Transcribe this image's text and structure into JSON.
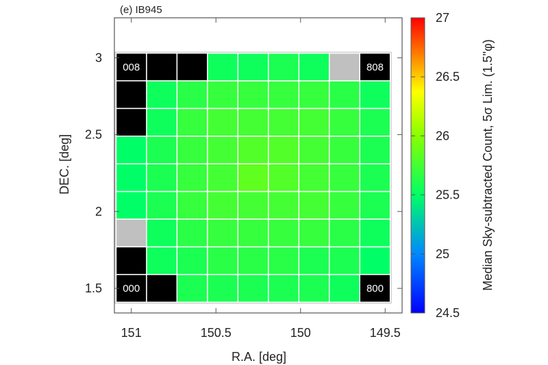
{
  "chart_data": {
    "type": "heatmap",
    "title": "(e) IB945",
    "xlabel": "R.A. [deg]",
    "ylabel": "DEC. [deg]",
    "colorbar_label": "Median Sky-subtracted Count, 5σ Lim. (1.5\"φ)",
    "xlim": [
      151.1,
      149.4
    ],
    "ylim": [
      1.34,
      3.26
    ],
    "x_ticks": [
      {
        "value": 151,
        "label": "151"
      },
      {
        "value": 150.5,
        "label": "150.5"
      },
      {
        "value": 150,
        "label": "150"
      },
      {
        "value": 149.5,
        "label": "149.5"
      }
    ],
    "y_ticks": [
      {
        "value": 1.5,
        "label": "1.5"
      },
      {
        "value": 2,
        "label": "2"
      },
      {
        "value": 2.5,
        "label": "2.5"
      },
      {
        "value": 3,
        "label": "3"
      }
    ],
    "colorbar": {
      "min": 24.5,
      "max": 27,
      "ticks": [
        {
          "value": 24.5,
          "label": "24.5"
        },
        {
          "value": 25,
          "label": "25"
        },
        {
          "value": 25.5,
          "label": "25.5"
        },
        {
          "value": 26,
          "label": "26"
        },
        {
          "value": 26.5,
          "label": "26.5"
        },
        {
          "value": 27,
          "label": "27"
        }
      ]
    },
    "grid": {
      "ra_start": 151.0,
      "ra_step": -0.18,
      "dec_start": 1.5,
      "dec_step": 0.18,
      "cols": 9,
      "rows": 9,
      "note_row_order": "rows listed from top (DEC 3.0) to bottom (DEC 1.5)",
      "values": [
        [
          "nodata-black",
          "nodata-black",
          "nodata-black",
          25.55,
          25.55,
          25.6,
          25.55,
          "nodata-gray",
          "nodata-black"
        ],
        [
          "nodata-black",
          25.55,
          25.65,
          25.7,
          25.7,
          25.7,
          25.7,
          25.65,
          25.55
        ],
        [
          "nodata-black",
          25.55,
          25.7,
          25.75,
          25.75,
          25.75,
          25.75,
          25.7,
          25.6
        ],
        [
          25.5,
          25.6,
          25.7,
          25.75,
          25.8,
          25.8,
          25.75,
          25.7,
          25.6
        ],
        [
          25.5,
          25.6,
          25.7,
          25.75,
          25.85,
          25.8,
          25.75,
          25.7,
          25.6
        ],
        [
          25.5,
          25.6,
          25.7,
          25.75,
          25.75,
          25.75,
          25.75,
          25.7,
          25.6
        ],
        [
          "nodata-gray",
          25.55,
          25.65,
          25.7,
          25.7,
          25.7,
          25.7,
          25.65,
          25.55
        ],
        [
          "nodata-black",
          25.55,
          25.6,
          25.65,
          25.65,
          25.65,
          25.6,
          25.6,
          25.5
        ],
        [
          "nodata-black",
          "nodata-black",
          25.6,
          25.6,
          25.6,
          25.6,
          25.6,
          25.55,
          "nodata-black"
        ]
      ]
    },
    "corner_labels": [
      {
        "text": "008",
        "row": 0,
        "col": 0
      },
      {
        "text": "808",
        "row": 0,
        "col": 8
      },
      {
        "text": "000",
        "row": 8,
        "col": 0
      },
      {
        "text": "800",
        "row": 8,
        "col": 8
      }
    ],
    "nodata_colors": {
      "nodata-black": "#000000",
      "nodata-gray": "#c0c0c0"
    },
    "cell_border_color": "#ffffff",
    "frame_color": "#c8c8c8"
  }
}
